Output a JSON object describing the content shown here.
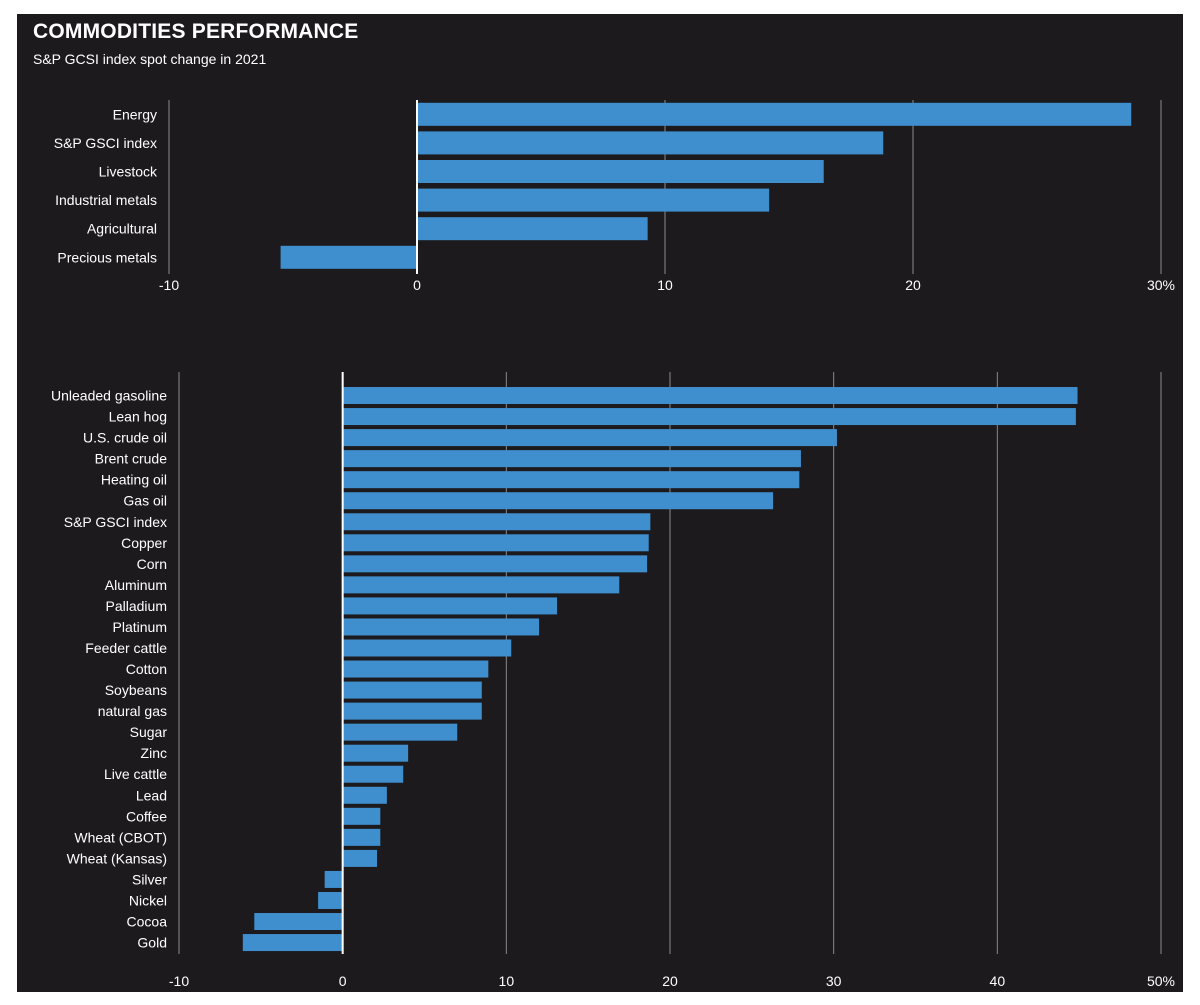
{
  "page": {
    "title": "COMMODITIES PERFORMANCE",
    "subtitle": "S&P GCSI index spot change in 2021"
  },
  "colors": {
    "background": "#1c1a1d",
    "bar": "#3f8fcf",
    "grid": "#8a8a8a",
    "zero_line": "#ffffff",
    "text": "#ffffff"
  },
  "chart_data": [
    {
      "type": "bar",
      "orientation": "horizontal",
      "categories": [
        "Energy",
        "S&P GSCI index",
        "Livestock",
        "Industrial metals",
        "Agricultural",
        "Precious metals"
      ],
      "values": [
        28.8,
        18.8,
        16.4,
        14.2,
        9.3,
        -5.5
      ],
      "xlim": [
        -10,
        30
      ],
      "ticks": [
        -10,
        0,
        10,
        20,
        30
      ],
      "tick_labels": [
        "-10",
        "0",
        "10",
        "20",
        "30%"
      ],
      "grid": true
    },
    {
      "type": "bar",
      "orientation": "horizontal",
      "categories": [
        "Unleaded gasoline",
        "Lean hog",
        "U.S. crude oil",
        "Brent crude",
        "Heating oil",
        "Gas oil",
        "S&P GSCI index",
        "Copper",
        "Corn",
        "Aluminum",
        "Palladium",
        "Platinum",
        "Feeder cattle",
        "Cotton",
        "Soybeans",
        "natural gas",
        "Sugar",
        "Zinc",
        "Live cattle",
        "Lead",
        "Coffee",
        "Wheat (CBOT)",
        "Wheat (Kansas)",
        "Silver",
        "Nickel",
        "Cocoa",
        "Gold"
      ],
      "values": [
        44.9,
        44.8,
        30.2,
        28.0,
        27.9,
        26.3,
        18.8,
        18.7,
        18.6,
        16.9,
        13.1,
        12.0,
        10.3,
        8.9,
        8.5,
        8.5,
        7.0,
        4.0,
        3.7,
        2.7,
        2.3,
        2.3,
        2.1,
        -1.1,
        -1.5,
        -5.4,
        -6.1
      ],
      "xlim": [
        -10,
        50
      ],
      "ticks": [
        -10,
        0,
        10,
        20,
        30,
        40,
        50
      ],
      "tick_labels": [
        "-10",
        "0",
        "10",
        "20",
        "30",
        "40",
        "50%"
      ],
      "grid": true
    }
  ]
}
